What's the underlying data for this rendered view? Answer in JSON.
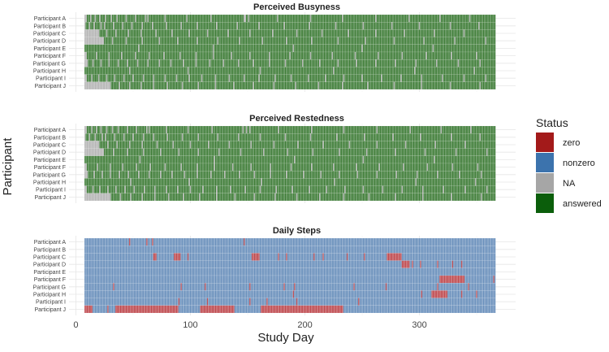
{
  "chart_data": {
    "type": "heatmap",
    "xlabel": "Study Day",
    "ylabel": "Participant",
    "xlim": [
      -6,
      384
    ],
    "x_ticks": [
      0,
      100,
      200,
      300
    ],
    "day_range": [
      8,
      366
    ],
    "grid": true,
    "participants": [
      "Participant A",
      "Participant B",
      "Participant C",
      "Participant D",
      "Participant E",
      "Participant F",
      "Participant G",
      "Participant H",
      "Participant I",
      "Participant J"
    ],
    "legend": {
      "title": "Status",
      "position": "right",
      "items": [
        {
          "label": "zero",
          "color": "#a31a1a"
        },
        {
          "label": "nonzero",
          "color": "#3c73ad"
        },
        {
          "label": "NA",
          "color": "#a6a6a6"
        },
        {
          "label": "answered",
          "color": "#0b5e0b"
        }
      ]
    },
    "panels": [
      {
        "title": "Perceived Busyness",
        "default_status": "answered",
        "other_status": "NA",
        "other_days": [
          [
            8,
            9,
            13,
            17,
            21,
            26,
            31,
            36,
            44,
            52,
            61,
            63,
            78,
            97,
            118,
            147,
            148,
            151,
            176,
            205,
            233,
            262,
            291,
            318,
            344
          ],
          [
            8,
            12,
            16,
            22,
            25,
            33,
            41,
            49,
            58,
            67,
            79,
            92,
            106,
            123,
            141,
            160,
            182,
            204,
            227,
            251,
            276,
            300,
            327,
            352
          ],
          [
            8,
            9,
            10,
            11,
            12,
            13,
            14,
            15,
            16,
            17,
            18,
            19,
            20,
            27,
            35,
            46,
            57,
            70,
            84,
            99,
            115,
            133,
            152,
            172,
            193,
            215,
            238,
            262,
            287,
            313,
            339
          ],
          [
            8,
            9,
            10,
            11,
            12,
            13,
            14,
            15,
            16,
            17,
            18,
            19,
            20,
            21,
            22,
            23,
            24,
            32,
            44,
            58,
            73,
            89,
            106,
            124,
            143,
            163,
            184,
            206,
            229,
            253,
            278,
            304,
            331,
            358
          ],
          [
            55,
            120,
            190,
            250,
            312
          ],
          [
            8,
            9,
            18,
            29,
            40,
            52,
            64,
            77,
            91,
            105,
            120,
            136,
            152,
            169,
            187,
            205,
            224,
            244,
            264,
            285,
            306,
            328,
            350
          ],
          [
            8,
            9,
            10,
            15,
            22,
            29,
            37,
            45,
            54,
            63,
            73,
            83,
            94,
            105,
            117,
            129,
            142,
            155,
            169,
            183,
            198,
            213,
            229,
            245,
            262,
            279,
            297,
            315,
            334,
            353
          ],
          [
            47,
            98,
            161,
            225,
            296,
            348
          ],
          [
            8,
            9,
            14,
            20,
            27,
            34,
            42,
            50,
            59,
            68,
            78,
            88,
            99,
            110,
            122,
            134,
            147,
            160,
            174,
            188,
            203,
            218,
            234,
            250,
            267,
            284,
            302,
            320,
            339,
            358
          ],
          [
            8,
            9,
            10,
            11,
            12,
            13,
            14,
            15,
            16,
            17,
            18,
            19,
            20,
            21,
            22,
            23,
            24,
            25,
            26,
            27,
            28,
            29,
            30,
            38,
            47,
            57,
            68,
            80,
            93,
            107,
            122,
            138,
            155,
            173,
            192,
            212,
            233,
            255,
            278,
            302,
            327,
            353
          ]
        ]
      },
      {
        "title": "Perceived Restedness",
        "default_status": "answered",
        "other_status": "NA",
        "other_days": [
          [
            8,
            9,
            14,
            18,
            22,
            27,
            32,
            37,
            45,
            53,
            62,
            64,
            79,
            98,
            119,
            146,
            149,
            152,
            177,
            206,
            234,
            263,
            292,
            319,
            345
          ],
          [
            8,
            12,
            17,
            23,
            26,
            34,
            42,
            50,
            59,
            68,
            80,
            93,
            107,
            124,
            142,
            161,
            183,
            205,
            228,
            252,
            277,
            301,
            328,
            353
          ],
          [
            8,
            9,
            10,
            11,
            12,
            13,
            14,
            15,
            16,
            17,
            18,
            19,
            20,
            28,
            36,
            47,
            58,
            71,
            85,
            100,
            116,
            134,
            153,
            173,
            194,
            216,
            239,
            263,
            288,
            314,
            340
          ],
          [
            8,
            9,
            10,
            11,
            12,
            13,
            14,
            15,
            16,
            17,
            18,
            19,
            20,
            21,
            22,
            23,
            24,
            33,
            45,
            59,
            74,
            90,
            107,
            125,
            144,
            164,
            185,
            207,
            230,
            254,
            279,
            305,
            332,
            359
          ],
          [
            56,
            121,
            191,
            251,
            313
          ],
          [
            8,
            9,
            19,
            30,
            41,
            53,
            65,
            78,
            92,
            106,
            121,
            137,
            153,
            170,
            188,
            206,
            225,
            245,
            265,
            286,
            307,
            329,
            351
          ],
          [
            8,
            9,
            10,
            16,
            23,
            30,
            38,
            46,
            55,
            64,
            74,
            84,
            95,
            106,
            118,
            130,
            143,
            156,
            170,
            184,
            199,
            214,
            230,
            246,
            263,
            280,
            298,
            316,
            335,
            354
          ],
          [
            48,
            99,
            162,
            226,
            297,
            349
          ],
          [
            8,
            9,
            15,
            21,
            28,
            35,
            43,
            51,
            60,
            69,
            79,
            89,
            100,
            111,
            123,
            135,
            148,
            161,
            175,
            189,
            204,
            219,
            235,
            251,
            268,
            285,
            303,
            321,
            340,
            359
          ],
          [
            8,
            9,
            10,
            11,
            12,
            13,
            14,
            15,
            16,
            17,
            18,
            19,
            20,
            21,
            22,
            23,
            24,
            25,
            26,
            27,
            28,
            29,
            30,
            39,
            48,
            58,
            69,
            81,
            94,
            108,
            123,
            139,
            156,
            174,
            193,
            213,
            234,
            256,
            279,
            303,
            328,
            354
          ]
        ]
      },
      {
        "title": "Daily Steps",
        "default_status": "nonzero",
        "other_status": "zero",
        "other_days": [
          [
            47,
            62,
            67,
            147
          ],
          [],
          [
            68,
            69,
            70,
            86,
            87,
            88,
            89,
            90,
            91,
            98,
            154,
            155,
            156,
            157,
            158,
            159,
            160,
            177,
            184,
            208,
            216,
            237,
            252,
            272,
            273,
            274,
            275,
            276,
            277,
            278,
            279,
            280,
            281,
            282,
            283,
            284
          ],
          [
            285,
            286,
            287,
            288,
            289,
            290,
            291,
            294,
            301,
            316,
            329,
            337
          ],
          [],
          [
            318,
            319,
            320,
            321,
            322,
            323,
            324,
            325,
            326,
            327,
            328,
            329,
            330,
            331,
            332,
            333,
            334,
            335,
            336,
            337,
            338,
            339,
            365
          ],
          [
            33,
            92,
            113,
            152,
            182,
            191,
            243,
            271,
            316,
            343
          ],
          [
            190,
            302,
            311,
            312,
            313,
            314,
            315,
            316,
            317,
            318,
            319,
            320,
            321,
            322,
            323,
            324,
            337,
            350
          ],
          [
            90,
            115,
            152,
            167,
            193,
            247
          ],
          [
            8,
            9,
            10,
            11,
            12,
            13,
            14,
            28,
            35,
            36,
            37,
            38,
            39,
            40,
            41,
            42,
            43,
            44,
            45,
            46,
            47,
            48,
            49,
            50,
            51,
            52,
            53,
            54,
            55,
            56,
            57,
            58,
            59,
            60,
            61,
            62,
            63,
            64,
            65,
            66,
            67,
            68,
            69,
            70,
            71,
            72,
            73,
            74,
            75,
            76,
            77,
            78,
            79,
            80,
            81,
            82,
            83,
            84,
            85,
            86,
            87,
            88,
            89,
            109,
            110,
            111,
            112,
            113,
            114,
            115,
            116,
            117,
            118,
            119,
            120,
            121,
            122,
            123,
            124,
            125,
            126,
            127,
            128,
            129,
            130,
            131,
            132,
            133,
            134,
            135,
            136,
            137,
            138,
            162,
            163,
            164,
            165,
            166,
            167,
            168,
            169,
            170,
            171,
            172,
            173,
            174,
            175,
            176,
            177,
            178,
            179,
            180,
            181,
            182,
            183,
            184,
            185,
            186,
            187,
            188,
            189,
            190,
            191,
            192,
            193,
            194,
            195,
            196,
            197,
            198,
            199,
            200,
            201,
            202,
            203,
            204,
            205,
            206,
            207,
            208,
            209,
            210,
            211,
            212,
            213,
            214,
            215,
            216,
            217,
            218,
            219,
            220,
            221,
            222,
            223,
            224,
            225,
            226,
            227,
            228,
            229,
            230,
            231,
            232,
            233
          ]
        ]
      }
    ]
  }
}
